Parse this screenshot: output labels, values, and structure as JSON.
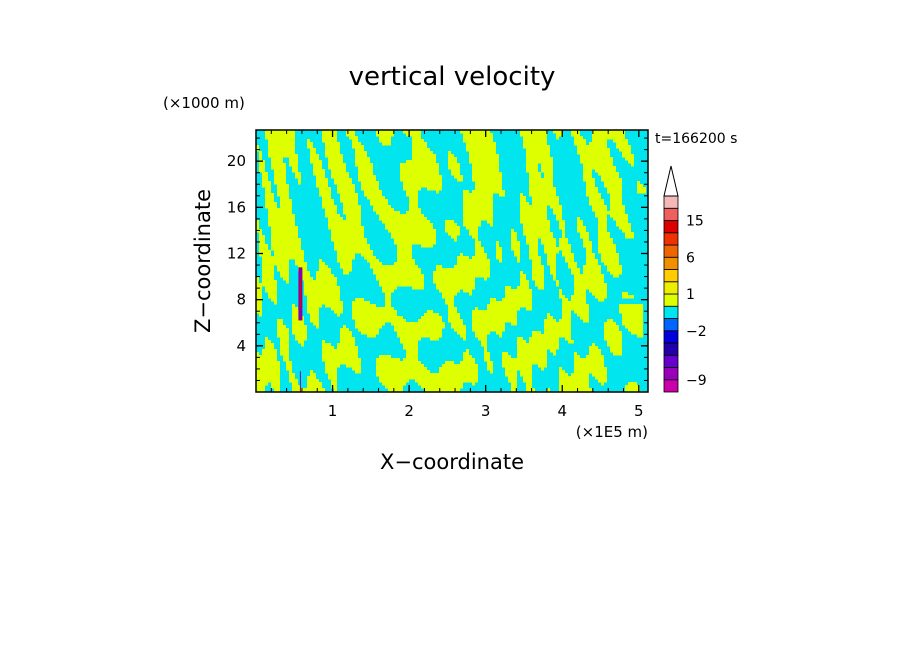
{
  "chart_data": {
    "type": "heatmap",
    "title": "vertical velocity",
    "xlabel": "X−coordinate",
    "ylabel": "Z−coordinate",
    "x_unit": "(×1E5 m)",
    "y_unit": "(×1000 m)",
    "time_label": "t=166200 s",
    "xlim": [
      0,
      5.12
    ],
    "ylim": [
      0,
      22.7
    ],
    "x_ticks": [
      1,
      2,
      3,
      4,
      5
    ],
    "x_tick_labels": [
      "1",
      "2",
      "3",
      "4",
      "5"
    ],
    "y_ticks": [
      4,
      8,
      12,
      16,
      20
    ],
    "y_tick_labels": [
      "4",
      "8",
      "12",
      "16",
      "20"
    ],
    "colorbar": {
      "labels": [
        {
          "value": 15,
          "text": "15"
        },
        {
          "value": 6,
          "text": "6"
        },
        {
          "value": 1,
          "text": "1"
        },
        {
          "value": -2,
          "text": "−2"
        },
        {
          "value": -9,
          "text": "−9"
        }
      ],
      "levels": [
        {
          "from": -12,
          "to": -9,
          "color": "#cc00aa"
        },
        {
          "from": -9,
          "to": -6,
          "color": "#9900bb"
        },
        {
          "from": -6,
          "to": -4,
          "color": "#6600cc"
        },
        {
          "from": -4,
          "to": -3,
          "color": "#2200aa"
        },
        {
          "from": -3,
          "to": -2,
          "color": "#0000dd"
        },
        {
          "from": -2,
          "to": -1,
          "color": "#0066ff"
        },
        {
          "from": -1,
          "to": 0,
          "color": "#00e5ee"
        },
        {
          "from": 0,
          "to": 1,
          "color": "#ddff00"
        },
        {
          "from": 1,
          "to": 2,
          "color": "#eeee00"
        },
        {
          "from": 2,
          "to": 3,
          "color": "#ffcc00"
        },
        {
          "from": 3,
          "to": 6,
          "color": "#f09000"
        },
        {
          "from": 6,
          "to": 9,
          "color": "#ee6600"
        },
        {
          "from": 9,
          "to": 12,
          "color": "#ee3300"
        },
        {
          "from": 12,
          "to": 15,
          "color": "#dd0000"
        },
        {
          "from": 15,
          "to": 18,
          "color": "#ee6060"
        },
        {
          "from": 18,
          "to": 24,
          "color": "#f5b8b8"
        }
      ]
    },
    "colors": {
      "negative_weak": "#00e5ee",
      "positive_weak": "#ddff00",
      "anomaly_negative": "#8800aa",
      "anomaly_positive": "#dd0000"
    }
  }
}
